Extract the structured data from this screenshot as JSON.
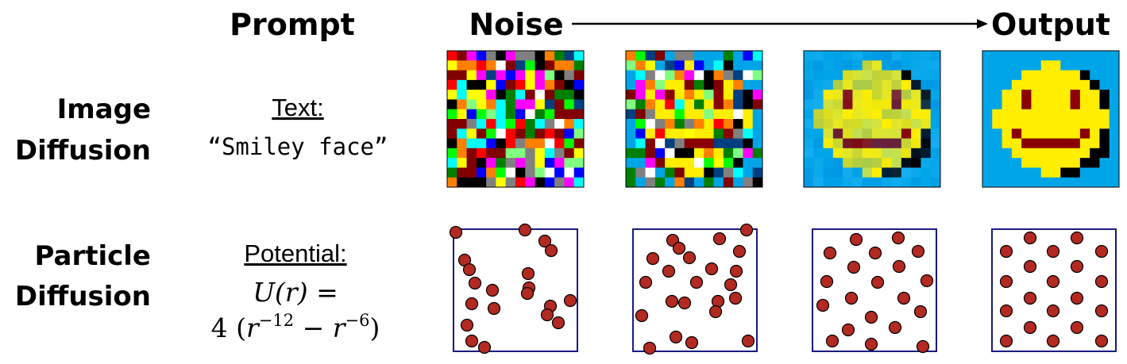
{
  "header": {
    "prompt": "Prompt",
    "noise": "Noise",
    "output": "Output"
  },
  "rows": [
    {
      "label_line1": "Image",
      "label_line2": "Diffusion",
      "prompt_kind": "Text:",
      "prompt": "“Smiley face”"
    },
    {
      "label_line1": "Particle",
      "label_line2": "Diffusion",
      "prompt_kind": "Potential:",
      "formula_line1": "U(r) =",
      "formula_line2": [
        "4 (",
        "r",
        "−12",
        " − ",
        "r",
        "−6",
        ")"
      ]
    }
  ]
}
